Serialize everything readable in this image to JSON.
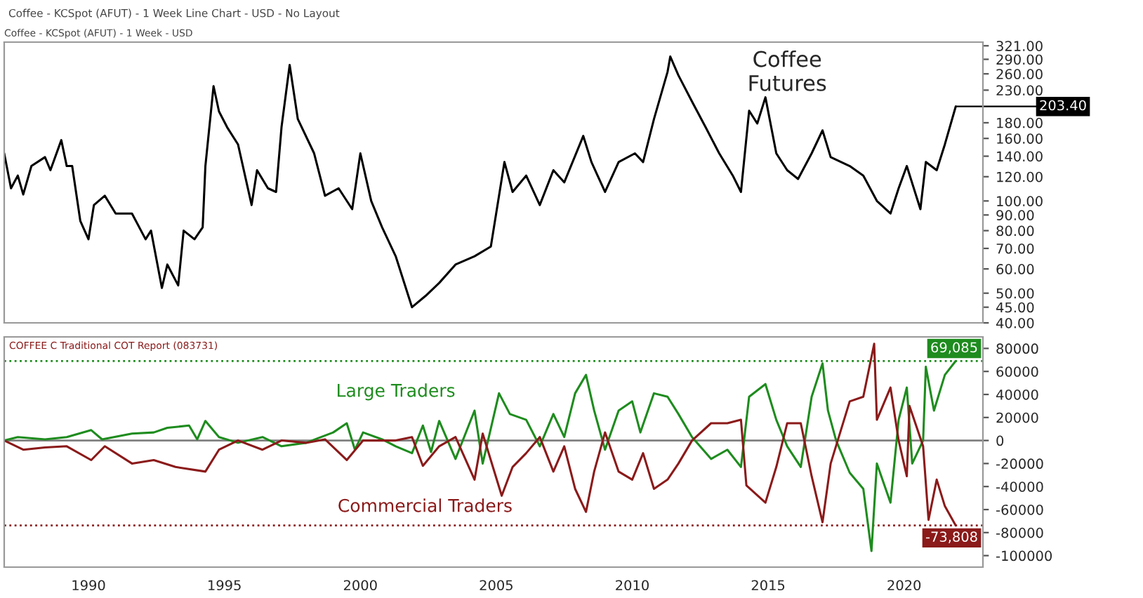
{
  "chart_data": [
    {
      "type": "line",
      "title": "Coffee Futures",
      "subtitle": "Coffee - KCSpot (AFUT) - 1 Week - USD",
      "log": true,
      "tick_labels": "y",
      "legend": false,
      "grid": false,
      "annotations": [
        "Coffee - KCSpot (AFUT) - 1 Week Line Chart - USD - No Layout",
        {
          "text": "203.40",
          "x": 2021.9,
          "y": 203.4
        }
      ],
      "xlim": [
        1986.9,
        2022.9
      ],
      "xticks": [
        1990,
        1995,
        2000,
        2005,
        2010,
        2015,
        2020
      ],
      "ylim": [
        40,
        330
      ],
      "yticks": [
        {
          "value": 40,
          "label": "40.00"
        },
        {
          "value": 45,
          "label": "45.00"
        },
        {
          "value": 50,
          "label": "50.00"
        },
        {
          "value": 60,
          "label": "60.00"
        },
        {
          "value": 70,
          "label": "70.00"
        },
        {
          "value": 80,
          "label": "80.00"
        },
        {
          "value": 90,
          "label": "90.00"
        },
        {
          "value": 100,
          "label": "100.00"
        },
        {
          "value": 120,
          "label": "120.00"
        },
        {
          "value": 140,
          "label": "140.00"
        },
        {
          "value": 160,
          "label": "160.00"
        },
        {
          "value": 180,
          "label": "180.00"
        },
        {
          "value": 230,
          "label": "230.00"
        },
        {
          "value": 260,
          "label": "260.00"
        },
        {
          "value": 290,
          "label": "290.00"
        },
        {
          "value": 321,
          "label": "321.00"
        }
      ],
      "series": [
        {
          "color": "#000000",
          "x": [
            1986.9,
            1987.15,
            1987.4,
            1987.6,
            1987.9,
            1988.4,
            1988.6,
            1989.0,
            1989.2,
            1989.4,
            1989.7,
            1990.0,
            1990.2,
            1990.6,
            1991.0,
            1991.6,
            1992.1,
            1992.3,
            1992.7,
            1992.9,
            1993.3,
            1993.5,
            1993.9,
            1994.2,
            1994.3,
            1994.6,
            1994.8,
            1995.1,
            1995.5,
            1996.0,
            1996.2,
            1996.6,
            1996.9,
            1997.1,
            1997.4,
            1997.7,
            1998.3,
            1998.7,
            1999.2,
            1999.7,
            2000.0,
            2000.4,
            2000.8,
            2001.3,
            2001.9,
            2002.4,
            2002.9,
            2003.5,
            2004.2,
            2004.8,
            2005.3,
            2005.6,
            2006.1,
            2006.6,
            2007.1,
            2007.5,
            2008.2,
            2008.5,
            2009.0,
            2009.5,
            2010.1,
            2010.4,
            2010.8,
            2011.3,
            2011.4,
            2011.7,
            2012.2,
            2012.7,
            2013.2,
            2013.7,
            2014.0,
            2014.3,
            2014.6,
            2014.9,
            2015.3,
            2015.7,
            2016.1,
            2016.6,
            2017.0,
            2017.3,
            2018.0,
            2018.5,
            2019.0,
            2019.5,
            2019.8,
            2020.1,
            2020.6,
            2020.8,
            2021.2,
            2021.5,
            2021.9
          ],
          "values": [
            143,
            110,
            121,
            105,
            130,
            139,
            126,
            158,
            130,
            130,
            86,
            75,
            97,
            104,
            91,
            91,
            75,
            80,
            52,
            62,
            53,
            80,
            75,
            82,
            130,
            237,
            196,
            174,
            153,
            97,
            126,
            110,
            107,
            174,
            278,
            185,
            143,
            104,
            110,
            94,
            143,
            100,
            82,
            66,
            45,
            49,
            54,
            62,
            66,
            71,
            134,
            107,
            121,
            97,
            126,
            115,
            163,
            134,
            107,
            134,
            143,
            134,
            185,
            264,
            296,
            257,
            211,
            174,
            143,
            121,
            107,
            197,
            179,
            218,
            143,
            126,
            118,
            143,
            170,
            139,
            130,
            121,
            100,
            91,
            110,
            130,
            94,
            134,
            126,
            153,
            203.4
          ]
        }
      ]
    },
    {
      "type": "line",
      "title": "COFFEE C Traditional COT Report (083731)",
      "legend": false,
      "grid": false,
      "xlim": [
        1986.9,
        2022.9
      ],
      "xticks": [
        1990,
        1995,
        2000,
        2005,
        2010,
        2015,
        2020
      ],
      "ylim": [
        -110000,
        90000
      ],
      "yticks": [
        -100000,
        -80000,
        -60000,
        -40000,
        -20000,
        0,
        20000,
        40000,
        60000,
        80000
      ],
      "ref_lines": [
        {
          "axis": "y",
          "value": 0,
          "color": "#808080",
          "line_style": "solid"
        },
        {
          "axis": "y",
          "value": 69085,
          "label": "69,085",
          "color": "#1e8c1e",
          "line_style": "dotted"
        },
        {
          "axis": "y",
          "value": -73808,
          "label": "-73,808",
          "color": "#8b1a1a",
          "line_style": "dotted"
        }
      ],
      "series": [
        {
          "name": "Large Traders",
          "color": "#1e8c1e",
          "x": [
            1986.9,
            1987.4,
            1988.4,
            1989.2,
            1990.1,
            1990.5,
            1991.6,
            1992.4,
            1992.9,
            1993.7,
            1994.0,
            1994.3,
            1994.8,
            1995.5,
            1996.4,
            1997.1,
            1998.0,
            1999.0,
            1999.5,
            1999.8,
            2000.1,
            2000.8,
            2001.3,
            2001.9,
            2002.3,
            2002.6,
            2002.9,
            2003.5,
            2004.2,
            2004.5,
            2005.1,
            2005.5,
            2006.1,
            2006.6,
            2007.1,
            2007.5,
            2007.9,
            2008.3,
            2008.6,
            2009.0,
            2009.5,
            2010.0,
            2010.3,
            2010.8,
            2011.3,
            2011.7,
            2012.2,
            2012.9,
            2013.5,
            2014.0,
            2014.3,
            2014.9,
            2015.3,
            2015.7,
            2016.2,
            2016.6,
            2017.0,
            2017.2,
            2017.5,
            2018.0,
            2018.5,
            2018.8,
            2019.0,
            2019.5,
            2019.8,
            2020.1,
            2020.3,
            2020.7,
            2020.8,
            2021.1,
            2021.5,
            2021.9
          ],
          "values": [
            0,
            3000,
            1000,
            3000,
            9000,
            1000,
            6000,
            7000,
            11000,
            13000,
            1000,
            17000,
            3000,
            -2000,
            3000,
            -5000,
            -2000,
            7000,
            15000,
            -8000,
            7000,
            1000,
            -5000,
            -11000,
            13000,
            -10000,
            17000,
            -16000,
            26000,
            -20000,
            41000,
            23000,
            18000,
            -5000,
            23000,
            3000,
            41000,
            57000,
            26000,
            -8000,
            26000,
            34000,
            7000,
            41000,
            38000,
            23000,
            3000,
            -16000,
            -8000,
            -23000,
            38000,
            49000,
            18000,
            -5000,
            -23000,
            38000,
            67000,
            26000,
            0,
            -28000,
            -42000,
            -96000,
            -20000,
            -54000,
            18000,
            46000,
            -20000,
            0,
            64000,
            26000,
            57000,
            69085
          ]
        },
        {
          "name": "Commercial Traders",
          "color": "#8b1a1a",
          "x": [
            1986.9,
            1987.6,
            1988.4,
            1989.2,
            1990.1,
            1990.6,
            1991.6,
            1992.4,
            1993.2,
            1994.3,
            1994.8,
            1995.5,
            1996.4,
            1997.1,
            1998.0,
            1998.7,
            1999.5,
            2000.1,
            2001.3,
            2001.9,
            2002.3,
            2002.9,
            2003.5,
            2004.2,
            2004.5,
            2005.2,
            2005.6,
            2006.1,
            2006.6,
            2007.1,
            2007.5,
            2007.9,
            2008.3,
            2008.6,
            2009.0,
            2009.5,
            2010.0,
            2010.4,
            2010.8,
            2011.3,
            2011.7,
            2012.2,
            2012.9,
            2013.5,
            2014.0,
            2014.2,
            2014.9,
            2015.3,
            2015.7,
            2016.2,
            2016.6,
            2017.0,
            2017.3,
            2018.0,
            2018.5,
            2018.9,
            2019.0,
            2019.5,
            2019.8,
            2020.1,
            2020.2,
            2020.7,
            2020.9,
            2021.2,
            2021.5,
            2021.9
          ],
          "values": [
            0,
            -8000,
            -6000,
            -5000,
            -17000,
            -5000,
            -20000,
            -17000,
            -23000,
            -27000,
            -8000,
            0,
            -8000,
            0,
            -2000,
            1000,
            -17000,
            0,
            0,
            3000,
            -22000,
            -5000,
            3000,
            -34000,
            6000,
            -48000,
            -23000,
            -11000,
            3000,
            -27000,
            -5000,
            -42000,
            -62000,
            -27000,
            7000,
            -27000,
            -34000,
            -11000,
            -42000,
            -34000,
            -20000,
            0,
            15000,
            15000,
            18000,
            -39000,
            -54000,
            -23000,
            15000,
            15000,
            -31000,
            -71000,
            -20000,
            34000,
            38000,
            84000,
            18000,
            46000,
            0,
            -31000,
            30000,
            -5000,
            -69000,
            -34000,
            -57000,
            -73808
          ]
        }
      ]
    }
  ]
}
